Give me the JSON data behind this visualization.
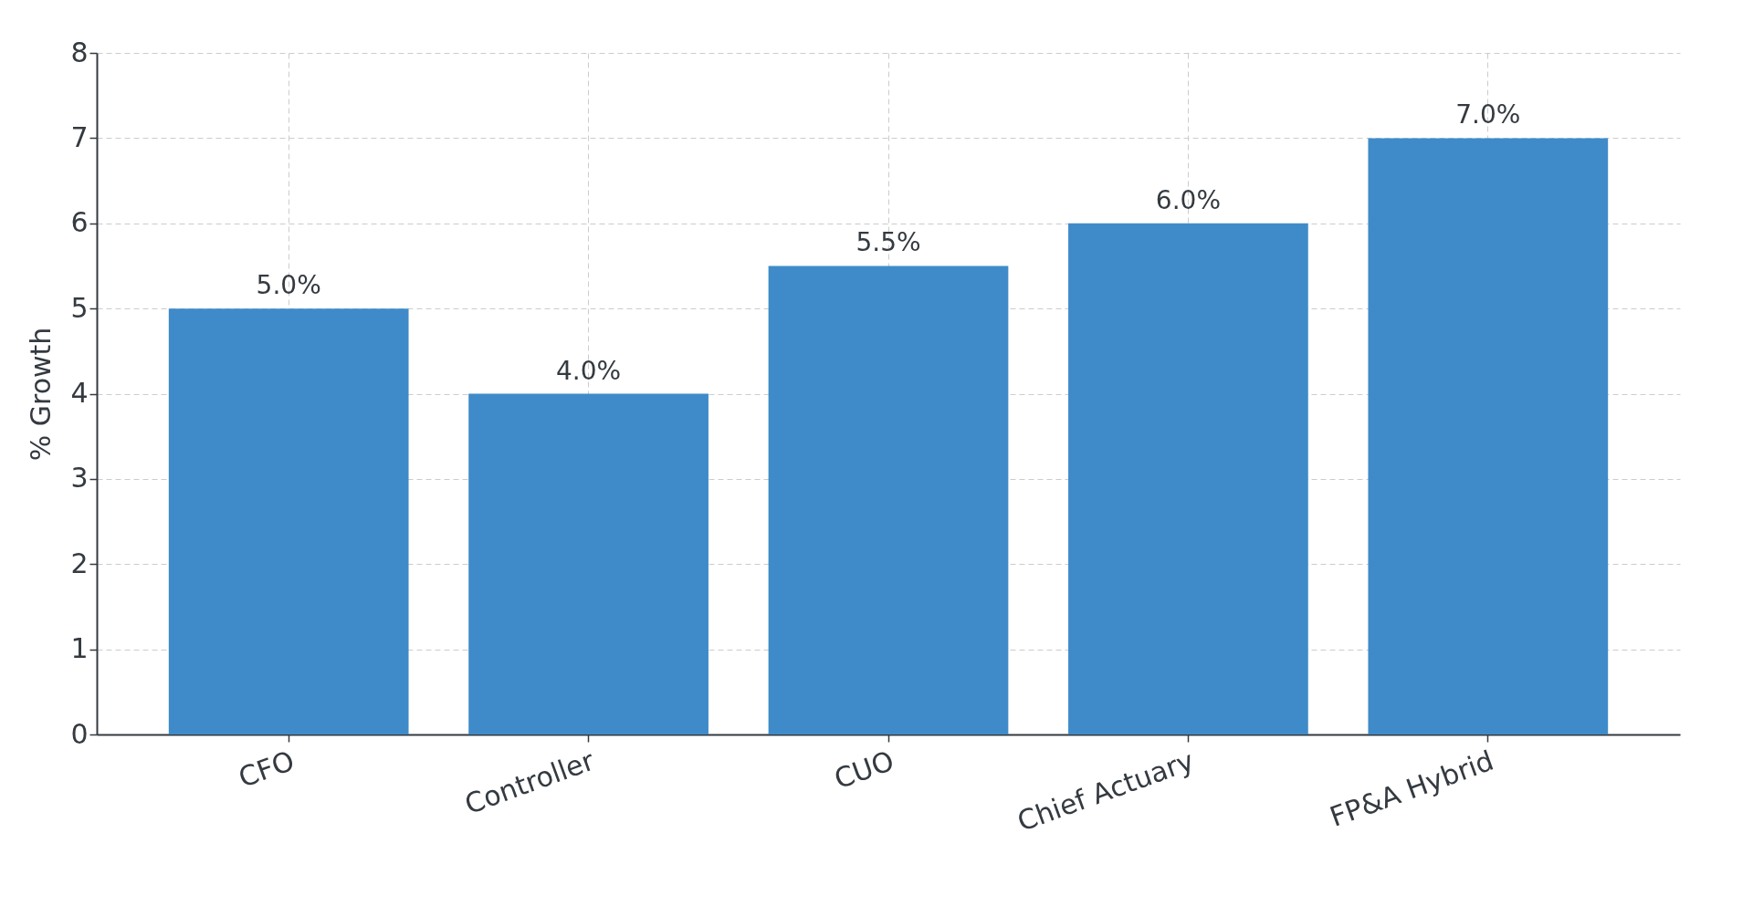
{
  "chart_data": {
    "type": "bar",
    "categories": [
      "CFO",
      "Controller",
      "CUO",
      "Chief Actuary",
      "FP&A Hybrid"
    ],
    "values": [
      5,
      4,
      5.5,
      6,
      7
    ],
    "value_labels": [
      "5.0%",
      "4.0%",
      "5.5%",
      "6.0%",
      "7.0%"
    ],
    "color": "#3f8bc9",
    "ylabel": "% Growth",
    "ylim": [
      0,
      8
    ],
    "yticks": [
      0,
      1,
      2,
      3,
      4,
      5,
      6,
      7,
      8
    ],
    "grid": true
  }
}
